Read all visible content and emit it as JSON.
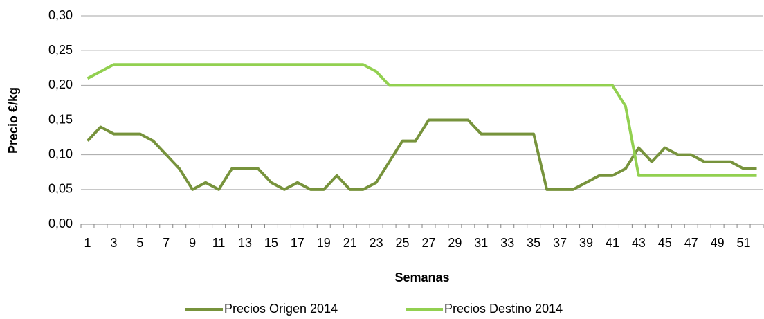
{
  "chart_data": {
    "type": "line",
    "x_label": "Semanas",
    "y_label": "Precio €/kg",
    "categories": [
      1,
      null,
      3,
      null,
      5,
      null,
      7,
      null,
      9,
      null,
      11,
      null,
      13,
      null,
      15,
      null,
      17,
      null,
      19,
      null,
      21,
      null,
      23,
      null,
      25,
      null,
      27,
      null,
      29,
      null,
      31,
      null,
      33,
      null,
      35,
      null,
      37,
      null,
      39,
      null,
      41,
      null,
      43,
      null,
      45,
      null,
      47,
      null,
      49,
      null,
      51,
      null
    ],
    "series": [
      {
        "name": "Precios Origen 2014",
        "color": "#77933c",
        "values": [
          0.12,
          0.14,
          0.13,
          0.13,
          0.13,
          0.12,
          0.1,
          0.08,
          0.05,
          0.06,
          0.05,
          0.08,
          0.08,
          0.08,
          0.06,
          0.05,
          0.06,
          0.05,
          0.05,
          0.07,
          0.05,
          0.05,
          0.06,
          0.09,
          0.12,
          0.12,
          0.15,
          0.15,
          0.15,
          0.15,
          0.13,
          0.13,
          0.13,
          0.13,
          0.13,
          0.05,
          0.05,
          0.05,
          0.06,
          0.07,
          0.07,
          0.08,
          0.11,
          0.09,
          0.11,
          0.1,
          0.1,
          0.09,
          0.09,
          0.09,
          0.08,
          0.08
        ]
      },
      {
        "name": "Precios Destino 2014",
        "color": "#92d050",
        "values": [
          0.21,
          0.22,
          0.23,
          0.23,
          0.23,
          0.23,
          0.23,
          0.23,
          0.23,
          0.23,
          0.23,
          0.23,
          0.23,
          0.23,
          0.23,
          0.23,
          0.23,
          0.23,
          0.23,
          0.23,
          0.23,
          0.23,
          0.22,
          0.2,
          0.2,
          0.2,
          0.2,
          0.2,
          0.2,
          0.2,
          0.2,
          0.2,
          0.2,
          0.2,
          0.2,
          0.2,
          0.2,
          0.2,
          0.2,
          0.2,
          0.2,
          0.17,
          0.07,
          0.07,
          0.07,
          0.07,
          0.07,
          0.07,
          0.07,
          0.07,
          0.07,
          0.07
        ]
      }
    ],
    "ylim": [
      0,
      0.3
    ],
    "yticks": [
      {
        "value": 0,
        "label": "0,00"
      },
      {
        "value": 0.05,
        "label": "0,05"
      },
      {
        "value": 0.1,
        "label": "0,10"
      },
      {
        "value": 0.15,
        "label": "0,15"
      },
      {
        "value": 0.2,
        "label": "0,20"
      },
      {
        "value": 0.25,
        "label": "0,25"
      },
      {
        "value": 0.3,
        "label": "0,30"
      }
    ],
    "grid": true,
    "legend": "bottom"
  }
}
